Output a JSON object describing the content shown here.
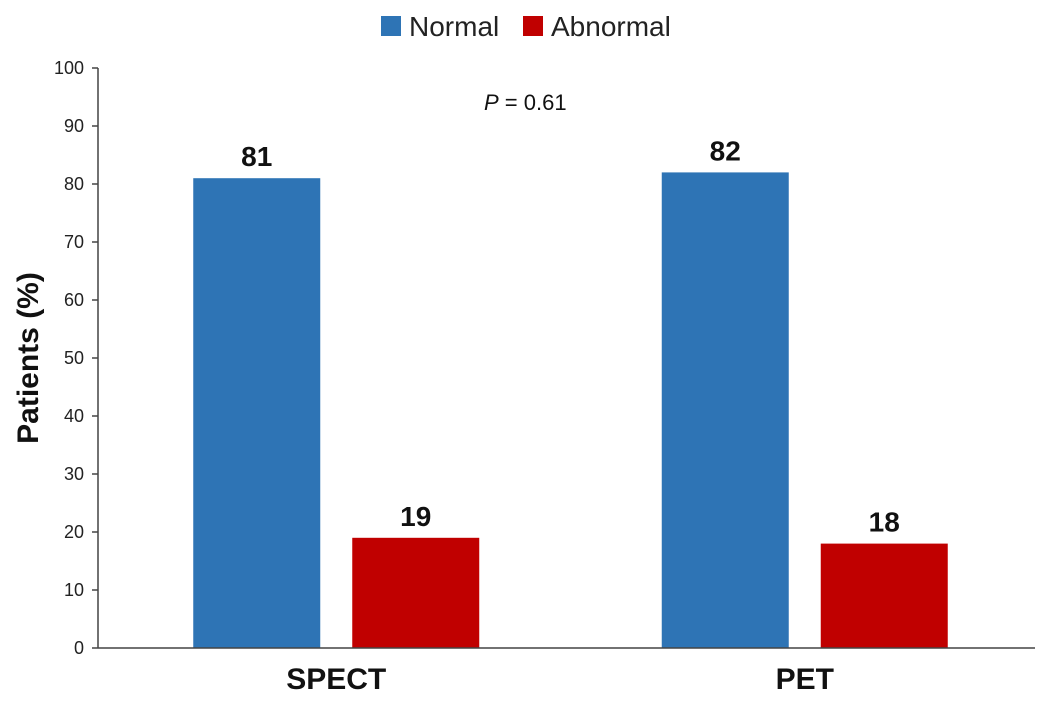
{
  "chart_data": {
    "type": "bar",
    "categories": [
      "SPECT",
      "PET"
    ],
    "series": [
      {
        "name": "Normal",
        "values": [
          81,
          82
        ],
        "color": "#2E74B5"
      },
      {
        "name": "Abnormal",
        "values": [
          19,
          18
        ],
        "color": "#C00000"
      }
    ],
    "ylabel": "Patients (%)",
    "ylim": [
      0,
      100
    ],
    "yticks": [
      0,
      10,
      20,
      30,
      40,
      50,
      60,
      70,
      80,
      90,
      100
    ],
    "legend_position": "top-center",
    "grid": false,
    "annotation": {
      "prefix": "P",
      "text": " = 0.61"
    }
  }
}
